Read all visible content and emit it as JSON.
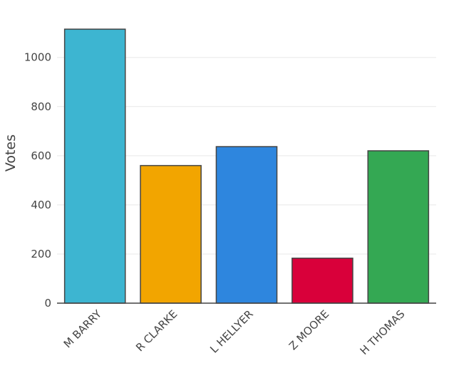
{
  "chart_data": {
    "type": "bar",
    "title": "",
    "xlabel": "",
    "ylabel": "Votes",
    "categories": [
      "M BARRY",
      "R CLARKE",
      "L HELLYER",
      "Z MOORE",
      "H THOMAS"
    ],
    "values": [
      1115,
      560,
      637,
      183,
      620
    ],
    "colors": [
      "#3db5d1",
      "#f2a500",
      "#2e86de",
      "#d9003a",
      "#34a853"
    ],
    "ylim": [
      0,
      1170
    ],
    "yticks": [
      0,
      200,
      400,
      600,
      800,
      1000
    ],
    "grid": true,
    "legend": "none"
  }
}
